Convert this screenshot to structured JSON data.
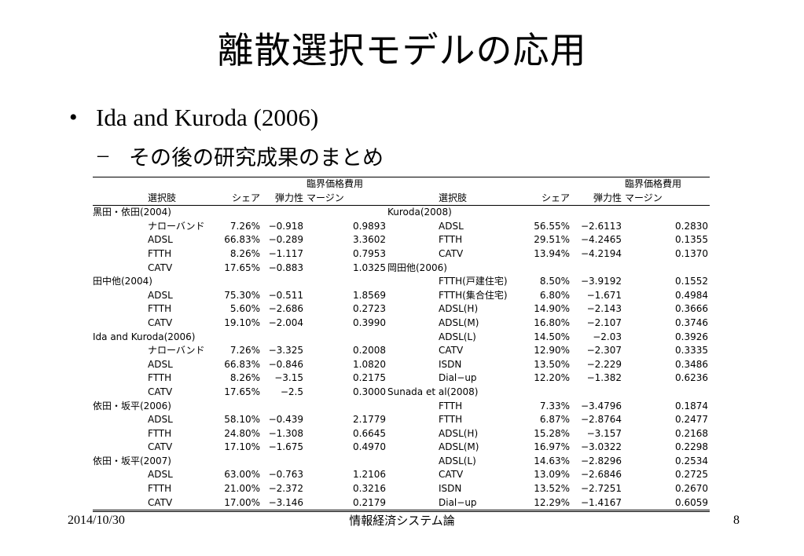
{
  "slide": {
    "title": "離散選択モデルの応用"
  },
  "bullet": {
    "text": "Ida and Kuroda (2006)"
  },
  "subbullet": {
    "dash": "–",
    "text": "その後の研究成果のまとめ"
  },
  "table": {
    "header_top": {
      "cost": "臨界価格費用"
    },
    "header": {
      "choice": "選択肢",
      "share": "シェア",
      "elasticity": "弾力性",
      "cost": "マージン"
    },
    "left": [
      {
        "group": "黒田・依田(2004)"
      },
      {
        "choice": "ナローバンド",
        "share": "7.26%",
        "elasticity": "−0.918",
        "cost": "0.9893"
      },
      {
        "choice": "ADSL",
        "share": "66.83%",
        "elasticity": "−0.289",
        "cost": "3.3602"
      },
      {
        "choice": "FTTH",
        "share": "8.26%",
        "elasticity": "−1.117",
        "cost": "0.7953"
      },
      {
        "choice": "CATV",
        "share": "17.65%",
        "elasticity": "−0.883",
        "cost": "1.0325"
      },
      {
        "group": "田中他(2004)"
      },
      {
        "choice": "ADSL",
        "share": "75.30%",
        "elasticity": "−0.511",
        "cost": "1.8569"
      },
      {
        "choice": "FTTH",
        "share": "5.60%",
        "elasticity": "−2.686",
        "cost": "0.2723"
      },
      {
        "choice": "CATV",
        "share": "19.10%",
        "elasticity": "−2.004",
        "cost": "0.3990"
      },
      {
        "group": "Ida and Kuroda(2006)"
      },
      {
        "choice": "ナローバンド",
        "share": "7.26%",
        "elasticity": "−3.325",
        "cost": "0.2008"
      },
      {
        "choice": "ADSL",
        "share": "66.83%",
        "elasticity": "−0.846",
        "cost": "1.0820"
      },
      {
        "choice": "FTTH",
        "share": "8.26%",
        "elasticity": "−3.15",
        "cost": "0.2175"
      },
      {
        "choice": "CATV",
        "share": "17.65%",
        "elasticity": "−2.5",
        "cost": "0.3000"
      },
      {
        "group": "依田・坂平(2006)"
      },
      {
        "choice": "ADSL",
        "share": "58.10%",
        "elasticity": "−0.439",
        "cost": "2.1779"
      },
      {
        "choice": "FTTH",
        "share": "24.80%",
        "elasticity": "−1.308",
        "cost": "0.6645"
      },
      {
        "choice": "CATV",
        "share": "17.10%",
        "elasticity": "−1.675",
        "cost": "0.4970"
      },
      {
        "group": "依田・坂平(2007)"
      },
      {
        "choice": "ADSL",
        "share": "63.00%",
        "elasticity": "−0.763",
        "cost": "1.2106"
      },
      {
        "choice": "FTTH",
        "share": "21.00%",
        "elasticity": "−2.372",
        "cost": "0.3216"
      },
      {
        "choice": "CATV",
        "share": "17.00%",
        "elasticity": "−3.146",
        "cost": "0.2179"
      }
    ],
    "right": [
      {
        "group": "Kuroda(2008)"
      },
      {
        "choice": "ADSL",
        "share": "56.55%",
        "elasticity": "−2.6113",
        "cost": "0.2830"
      },
      {
        "choice": "FTTH",
        "share": "29.51%",
        "elasticity": "−4.2465",
        "cost": "0.1355"
      },
      {
        "choice": "CATV",
        "share": "13.94%",
        "elasticity": "−4.2194",
        "cost": "0.1370"
      },
      {
        "group": "岡田他(2006)"
      },
      {
        "choice": "FTTH(戸建住宅)",
        "share": "8.50%",
        "elasticity": "−3.9192",
        "cost": "0.1552"
      },
      {
        "choice": "FTTH(集合住宅)",
        "share": "6.80%",
        "elasticity": "−1.671",
        "cost": "0.4984"
      },
      {
        "choice": "ADSL(H)",
        "share": "14.90%",
        "elasticity": "−2.143",
        "cost": "0.3666"
      },
      {
        "choice": "ADSL(M)",
        "share": "16.80%",
        "elasticity": "−2.107",
        "cost": "0.3746"
      },
      {
        "choice": "ADSL(L)",
        "share": "14.50%",
        "elasticity": "−2.03",
        "cost": "0.3926"
      },
      {
        "choice": "CATV",
        "share": "12.90%",
        "elasticity": "−2.307",
        "cost": "0.3335"
      },
      {
        "choice": "ISDN",
        "share": "13.50%",
        "elasticity": "−2.229",
        "cost": "0.3486"
      },
      {
        "choice": "Dial−up",
        "share": "12.20%",
        "elasticity": "−1.382",
        "cost": "0.6236"
      },
      {
        "group": "Sunada et al(2008)"
      },
      {
        "choice": "FTTH",
        "share": "7.33%",
        "elasticity": "−3.4796",
        "cost": "0.1874"
      },
      {
        "choice": "FTTH",
        "share": "6.87%",
        "elasticity": "−2.8764",
        "cost": "0.2477"
      },
      {
        "choice": "ADSL(H)",
        "share": "15.28%",
        "elasticity": "−3.157",
        "cost": "0.2168"
      },
      {
        "choice": "ADSL(M)",
        "share": "16.97%",
        "elasticity": "−3.0322",
        "cost": "0.2298"
      },
      {
        "choice": "ADSL(L)",
        "share": "14.63%",
        "elasticity": "−2.8296",
        "cost": "0.2534"
      },
      {
        "choice": "CATV",
        "share": "13.09%",
        "elasticity": "−2.6846",
        "cost": "0.2725"
      },
      {
        "choice": "ISDN",
        "share": "13.52%",
        "elasticity": "−2.7251",
        "cost": "0.2670"
      },
      {
        "choice": "Dial−up",
        "share": "12.29%",
        "elasticity": "−1.4167",
        "cost": "0.6059"
      }
    ]
  },
  "footer": {
    "date": "2014/10/30",
    "course": "情報経済システム論",
    "page": "8"
  }
}
